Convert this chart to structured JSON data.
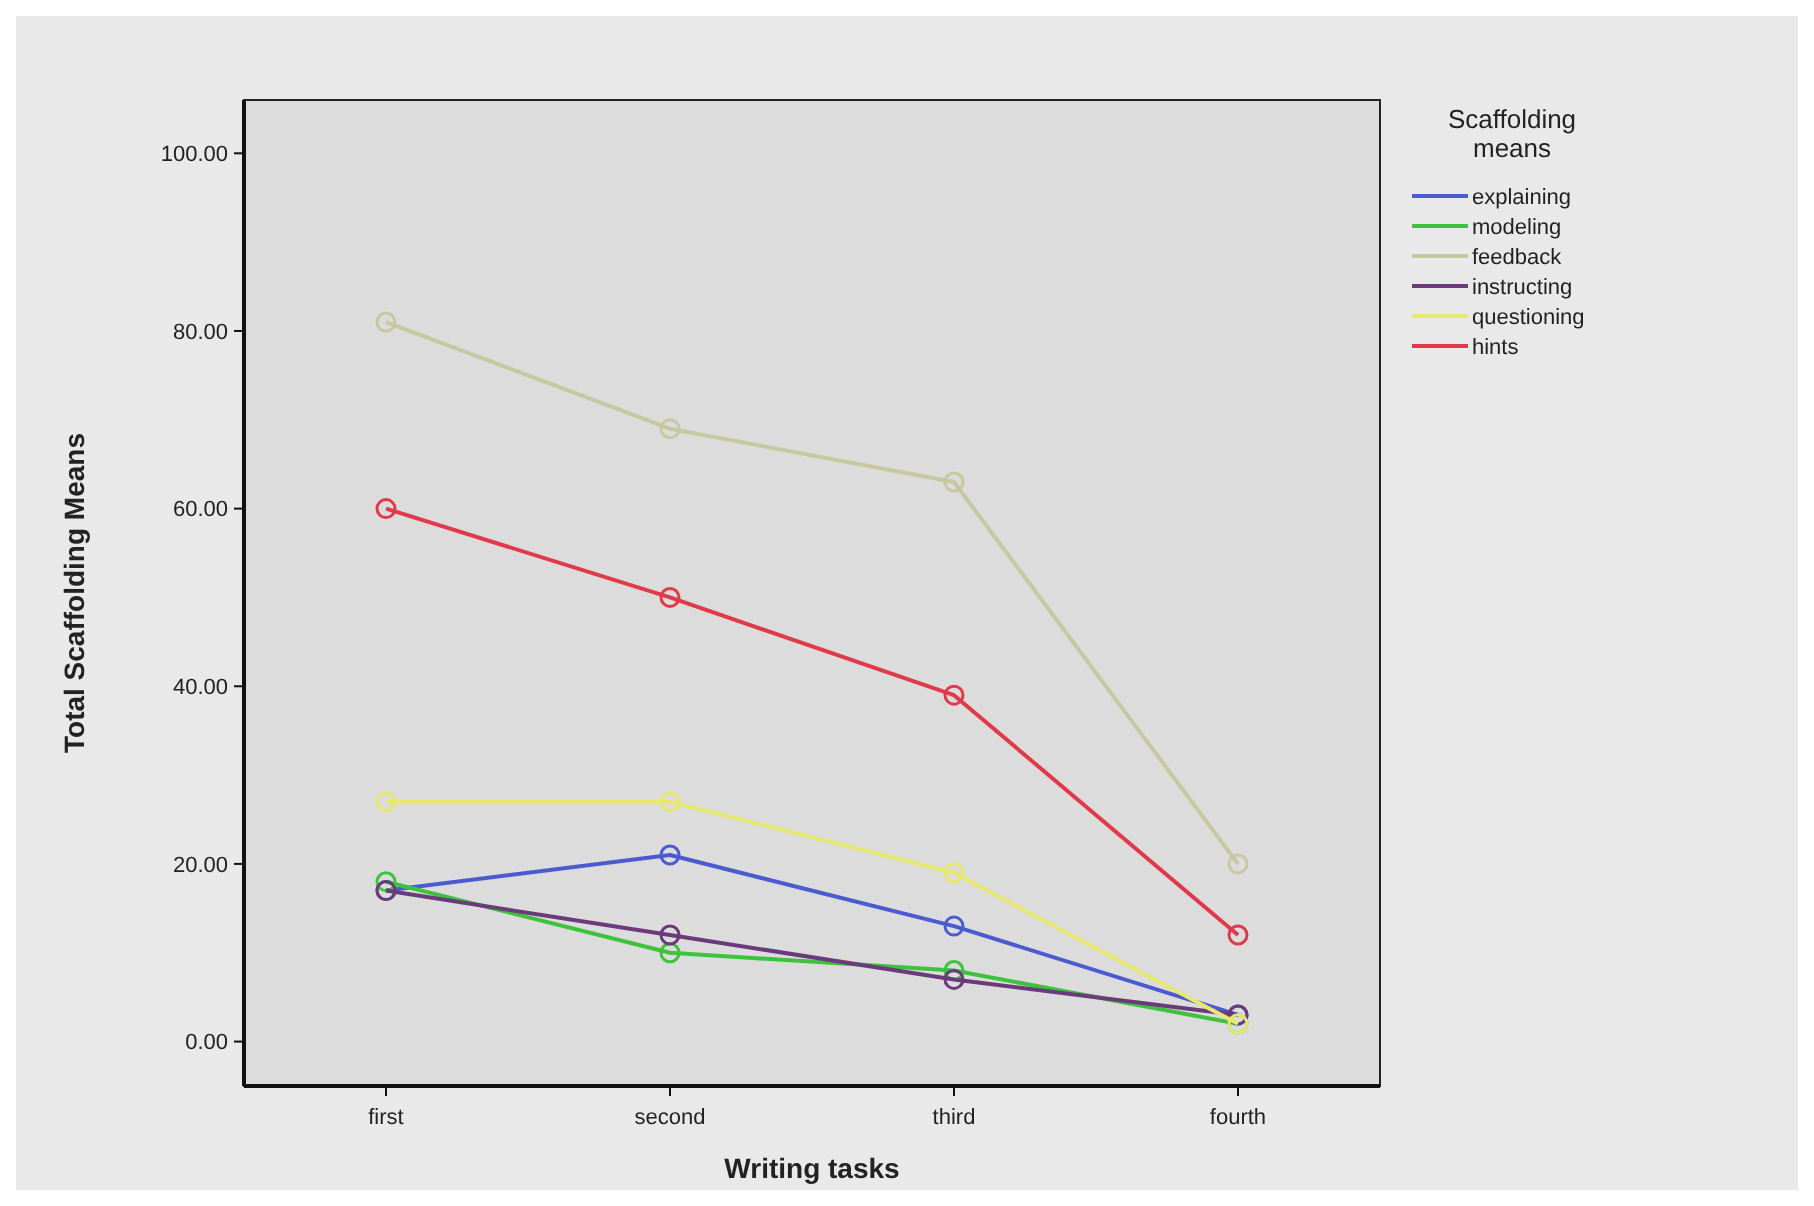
{
  "chart_data": {
    "type": "line",
    "xlabel": "Writing tasks",
    "ylabel": "Total Scaffolding Means",
    "legend_title": "Scaffolding means",
    "categories": [
      "first",
      "second",
      "third",
      "fourth"
    ],
    "series": [
      {
        "name": "explaining",
        "color": "#4a5bd0",
        "values": [
          17,
          21,
          13,
          3
        ]
      },
      {
        "name": "modeling",
        "color": "#3ec23e",
        "values": [
          18,
          10,
          8,
          2
        ]
      },
      {
        "name": "feedback",
        "color": "#c8c8a0",
        "values": [
          81,
          69,
          63,
          20
        ]
      },
      {
        "name": "instructing",
        "color": "#6a3a7a",
        "values": [
          17,
          12,
          7,
          3
        ]
      },
      {
        "name": "questioning",
        "color": "#e8e870",
        "values": [
          27,
          27,
          19,
          2
        ]
      },
      {
        "name": "hints",
        "color": "#e03a4a",
        "values": [
          60,
          50,
          39,
          12
        ]
      }
    ],
    "ylim": [
      -5,
      106
    ],
    "yticks": [
      {
        "value": 0,
        "label": "0.00"
      },
      {
        "value": 20,
        "label": "20.00"
      },
      {
        "value": 40,
        "label": "40.00"
      },
      {
        "value": 60,
        "label": "60.00"
      },
      {
        "value": 80,
        "label": "80.00"
      },
      {
        "value": 100,
        "label": "100.00"
      }
    ],
    "legend": "right",
    "marker": "circle",
    "grid": false
  }
}
